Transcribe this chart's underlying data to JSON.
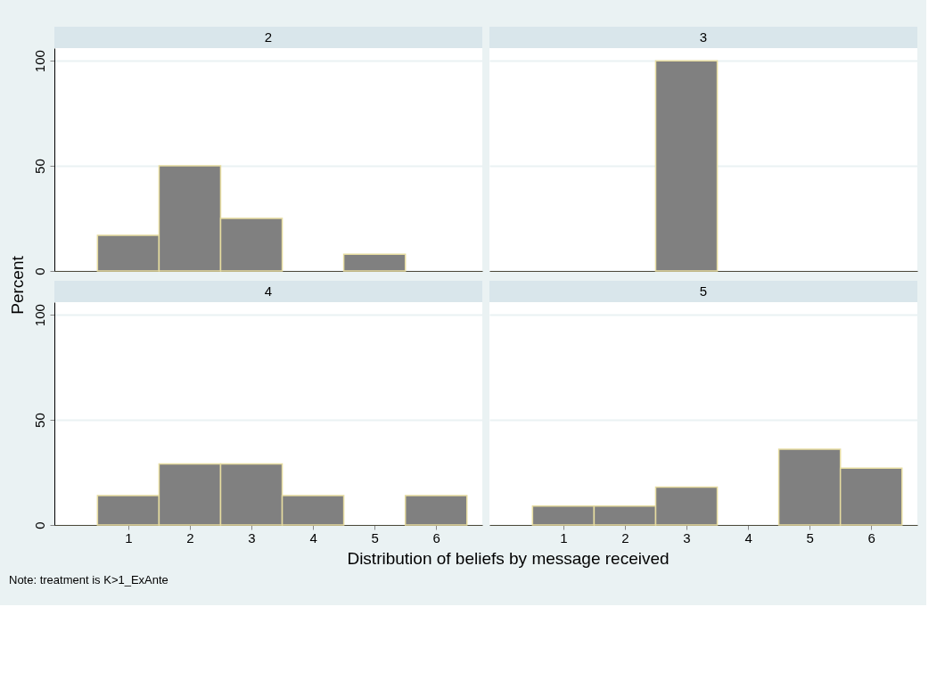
{
  "chart_data": [
    {
      "type": "histogram",
      "title": "2",
      "ylabel": "Percent",
      "bins": [
        0.5,
        1.5,
        2.5,
        3.5,
        4.5,
        5.5,
        6.5
      ],
      "values": [
        17,
        50,
        25,
        0,
        8,
        0
      ],
      "color": "#808080",
      "xlim": [
        -0.2,
        6.75
      ],
      "ylim": [
        0,
        106
      ],
      "yticks": [
        0,
        50,
        100
      ],
      "grid": "y",
      "tick_labels": "y"
    },
    {
      "type": "histogram",
      "title": "3",
      "bins": [
        2.5,
        3.5
      ],
      "values": [
        100
      ],
      "color": "#808080",
      "xlim": [
        -0.2,
        6.75
      ],
      "ylim": [
        0,
        106
      ],
      "yticks": [
        0,
        50,
        100
      ],
      "grid": "y",
      "tick_labels": false
    },
    {
      "type": "histogram",
      "title": "4",
      "xlabel": "Distribution of beliefs by message received",
      "annotations": [
        "Note: treatment is K>1_ExAnte"
      ],
      "bins": [
        0.5,
        1.5,
        2.5,
        3.5,
        4.5,
        5.5,
        6.5
      ],
      "values": [
        14,
        29,
        29,
        14,
        0,
        14
      ],
      "color": "#808080",
      "xlim": [
        -0.2,
        6.75
      ],
      "xticks": [
        1,
        2,
        3,
        4,
        5,
        6
      ],
      "ylim": [
        0,
        106
      ],
      "yticks": [
        0,
        50,
        100
      ],
      "grid": "y"
    },
    {
      "type": "histogram",
      "title": "5",
      "bins": [
        0.5,
        1.5,
        2.5,
        3.5,
        4.5,
        5.5,
        6.5
      ],
      "values": [
        9,
        9,
        18,
        0,
        36,
        27
      ],
      "color": "#808080",
      "xlim": [
        -0.2,
        6.75
      ],
      "xticks": [
        1,
        2,
        3,
        4,
        5,
        6
      ],
      "ylim": [
        0,
        106
      ],
      "yticks": [
        0,
        50,
        100
      ],
      "grid": "y",
      "tick_labels": "x"
    }
  ]
}
